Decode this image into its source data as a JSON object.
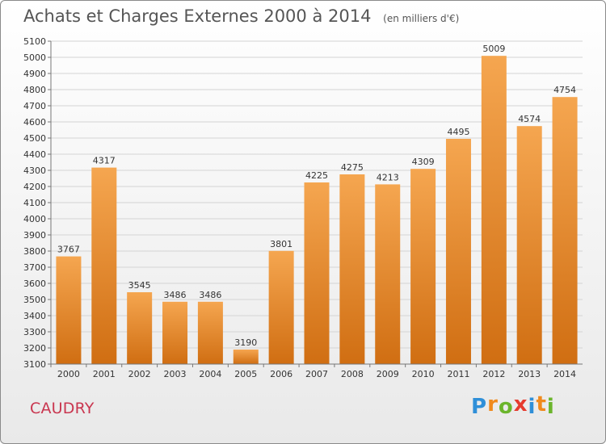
{
  "chart_data": {
    "type": "bar",
    "title": "Achats et Charges Externes 2000 à 2014",
    "subtitle": "(en milliers d'€)",
    "categories": [
      "2000",
      "2001",
      "2002",
      "2003",
      "2004",
      "2005",
      "2006",
      "2007",
      "2008",
      "2009",
      "2010",
      "2011",
      "2012",
      "2013",
      "2014"
    ],
    "values": [
      3767,
      4317,
      3545,
      3486,
      3486,
      3190,
      3801,
      4225,
      4275,
      4213,
      4309,
      4495,
      5009,
      4574,
      4754
    ],
    "ylim": [
      3100,
      5100
    ],
    "yticks": [
      3100,
      3200,
      3300,
      3400,
      3500,
      3600,
      3700,
      3800,
      3900,
      4000,
      4100,
      4200,
      4300,
      4400,
      4500,
      4600,
      4700,
      4800,
      4900,
      5000,
      5100
    ],
    "grid": true,
    "bar_color_top": "#f5a650",
    "bar_color_bottom": "#d06e12"
  },
  "footer": {
    "city": "CAUDRY",
    "logo_letters": [
      "P",
      "r",
      "o",
      "x",
      "i",
      "t",
      "i"
    ],
    "logo_colors": [
      "#2f8fd8",
      "#f08a1c",
      "#6bb52c",
      "#e63b2e",
      "#2f8fd8",
      "#f08a1c",
      "#6bb52c"
    ]
  }
}
